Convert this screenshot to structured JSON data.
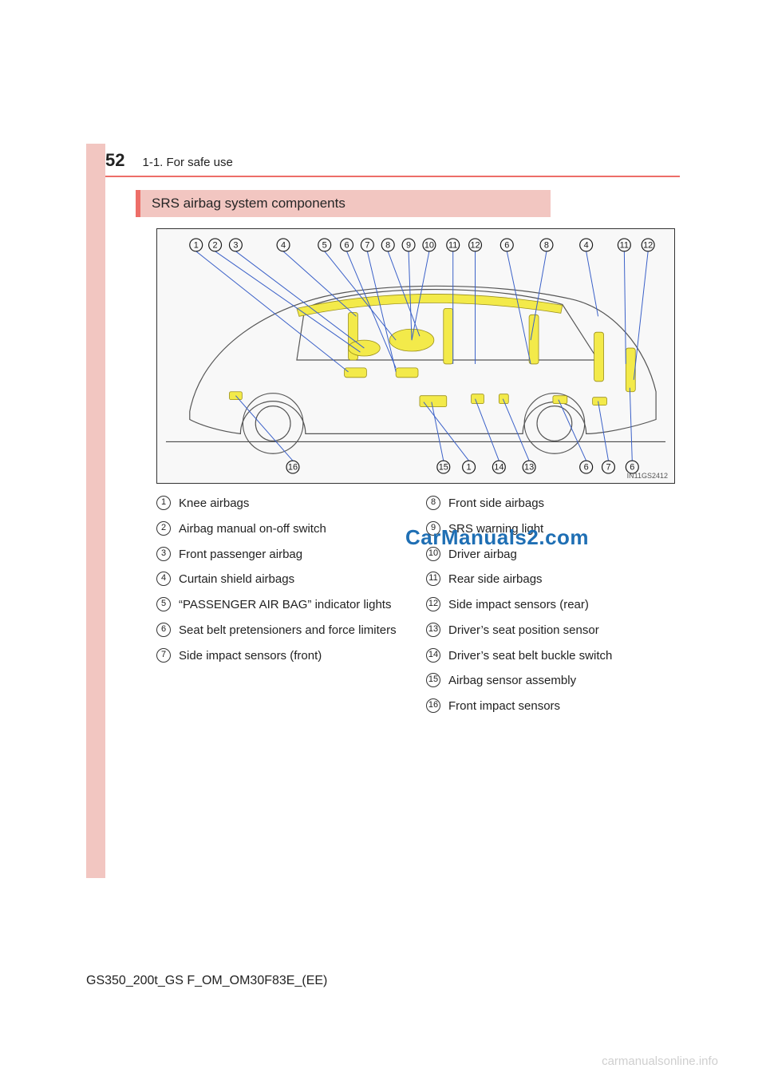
{
  "page": {
    "number": "52",
    "section_path": "1-1. For safe use",
    "banner": "SRS airbag system components",
    "footer_code": "GS350_200t_GS F_OM_OM30F83E_(EE)",
    "watermark": "CarManuals2.com",
    "footer_site": "carmanualsonline.info"
  },
  "colors": {
    "accent": "#ed6e68",
    "banner_bg": "#f2c6c1",
    "leader": "#3a60c8",
    "highlight_fill": "#f3ea4a",
    "highlight_stroke": "#9a8f1a",
    "watermark_text": "#1f6fb4",
    "footer_site_text": "#cfcfcf"
  },
  "figure": {
    "id_label": "IN11GS2412",
    "callouts_top": [
      "1",
      "2",
      "3",
      "4",
      "5",
      "6",
      "7",
      "8",
      "9",
      "10",
      "11",
      "12",
      "6",
      "8",
      "4",
      "11",
      "12"
    ],
    "callouts_bottom": [
      "16",
      "15",
      "1",
      "14",
      "13",
      "6",
      "7",
      "6"
    ]
  },
  "legend": {
    "left": [
      {
        "n": "1",
        "text": "Knee airbags"
      },
      {
        "n": "2",
        "text": "Airbag manual on-off switch"
      },
      {
        "n": "3",
        "text": "Front passenger airbag"
      },
      {
        "n": "4",
        "text": "Curtain shield airbags"
      },
      {
        "n": "5",
        "text": "“PASSENGER AIR BAG” indicator lights"
      },
      {
        "n": "6",
        "text": "Seat belt pretensioners and force limiters"
      },
      {
        "n": "7",
        "text": "Side impact sensors (front)"
      }
    ],
    "right": [
      {
        "n": "8",
        "text": "Front side airbags"
      },
      {
        "n": "9",
        "text": "SRS warning light"
      },
      {
        "n": "10",
        "text": "Driver airbag"
      },
      {
        "n": "11",
        "text": "Rear side airbags"
      },
      {
        "n": "12",
        "text": "Side impact sensors (rear)"
      },
      {
        "n": "13",
        "text": "Driver’s seat position sensor"
      },
      {
        "n": "14",
        "text": "Driver’s seat belt buckle switch"
      },
      {
        "n": "15",
        "text": "Airbag sensor assembly"
      },
      {
        "n": "16",
        "text": "Front impact sensors"
      }
    ]
  }
}
